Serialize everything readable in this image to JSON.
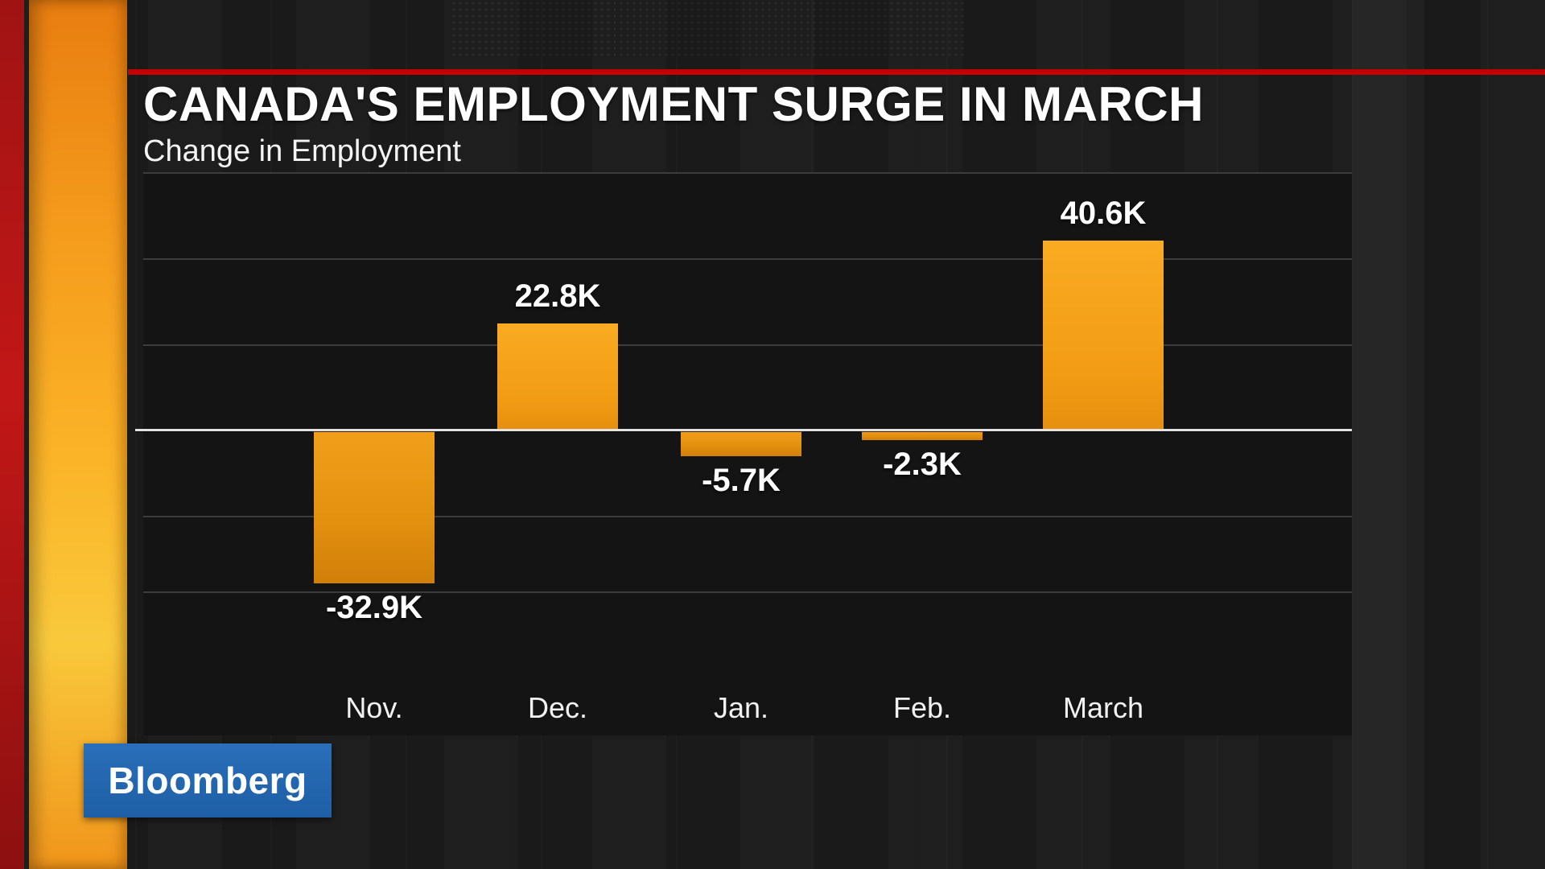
{
  "header": {
    "title": "CANADA'S EMPLOYMENT SURGE IN MARCH",
    "subtitle": "Change in Employment"
  },
  "branding": {
    "logo_text": "Bloomberg"
  },
  "colors": {
    "accent_red": "#c40000",
    "bar_orange": "#f29c15",
    "bloomberg_blue": "#2468af",
    "background": "#1b1b1b",
    "plot_background": "#141414",
    "gridline": "#3c3c3c",
    "zero_line": "#e2e2e2",
    "text": "#ffffff"
  },
  "chart_data": {
    "type": "bar",
    "title": "CANADA'S EMPLOYMENT SURGE IN MARCH",
    "subtitle": "Change in Employment",
    "categories": [
      "Nov.",
      "Dec.",
      "Jan.",
      "Feb.",
      "March"
    ],
    "values": [
      -32.9,
      22.8,
      -5.7,
      -2.3,
      40.6
    ],
    "labels": [
      "-32.9K",
      "22.8K",
      "-5.7K",
      "-2.3K",
      "40.6K"
    ],
    "unit": "K (thousands)",
    "xlabel": "",
    "ylabel": "",
    "ylim": [
      -55,
      60
    ],
    "grid": true,
    "legend": false
  }
}
